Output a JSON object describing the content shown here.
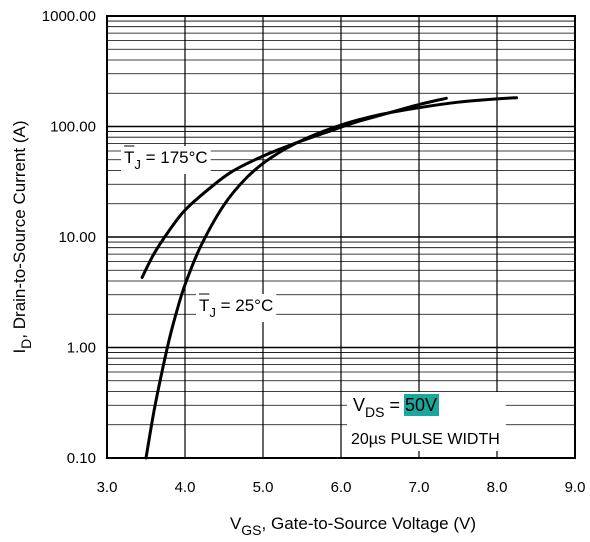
{
  "chart_data": {
    "type": "line",
    "title": "",
    "xlabel": {
      "main": "V",
      "sub": "GS",
      "rest": ", Gate-to-Source Voltage (V)"
    },
    "ylabel": {
      "main": "I",
      "sub": "D",
      "rest": ", Drain-to-Source Current  (A)"
    },
    "x_scale": "linear",
    "y_scale": "log",
    "xlim": [
      3.0,
      9.0
    ],
    "ylim": [
      0.1,
      1000
    ],
    "x_ticks": [
      3.0,
      4.0,
      5.0,
      6.0,
      7.0,
      8.0,
      9.0
    ],
    "x_tick_labels": [
      "3.0",
      "4.0",
      "5.0",
      "6.0",
      "7.0",
      "8.0",
      "9.0"
    ],
    "y_ticks": [
      0.1,
      1,
      10,
      100,
      1000
    ],
    "y_tick_labels": [
      "0.10",
      "1.00",
      "10.00",
      "100.00",
      "1000.00"
    ],
    "grid": true,
    "series": [
      {
        "label": {
          "main": "T",
          "sub": "J",
          "rest": " = 175°C"
        },
        "x": [
          3.45,
          3.6,
          3.8,
          4.0,
          4.3,
          4.6,
          5.0,
          5.4,
          5.8,
          6.2,
          6.6,
          7.0,
          7.35
        ],
        "y": [
          4.3,
          7.0,
          11.5,
          17.5,
          27,
          39,
          54,
          70,
          88,
          110,
          132,
          158,
          180
        ]
      },
      {
        "label": {
          "main": "T",
          "sub": "J",
          "rest": " = 25°C"
        },
        "x": [
          3.5,
          3.6,
          3.7,
          3.8,
          3.9,
          4.0,
          4.2,
          4.5,
          4.8,
          5.1,
          5.5,
          6.0,
          6.5,
          7.0,
          7.5,
          8.0,
          8.25
        ],
        "y": [
          0.1,
          0.26,
          0.58,
          1.2,
          2.2,
          3.7,
          8.2,
          19.5,
          35,
          52,
          75,
          103,
          128,
          148,
          166,
          178,
          182
        ]
      }
    ],
    "annotation": {
      "vds": {
        "main": "V",
        "sub": "DS",
        "eq": " = ",
        "value": "50V",
        "highlight": "#1aa79c"
      },
      "pulse": "20µs PULSE WIDTH"
    }
  }
}
